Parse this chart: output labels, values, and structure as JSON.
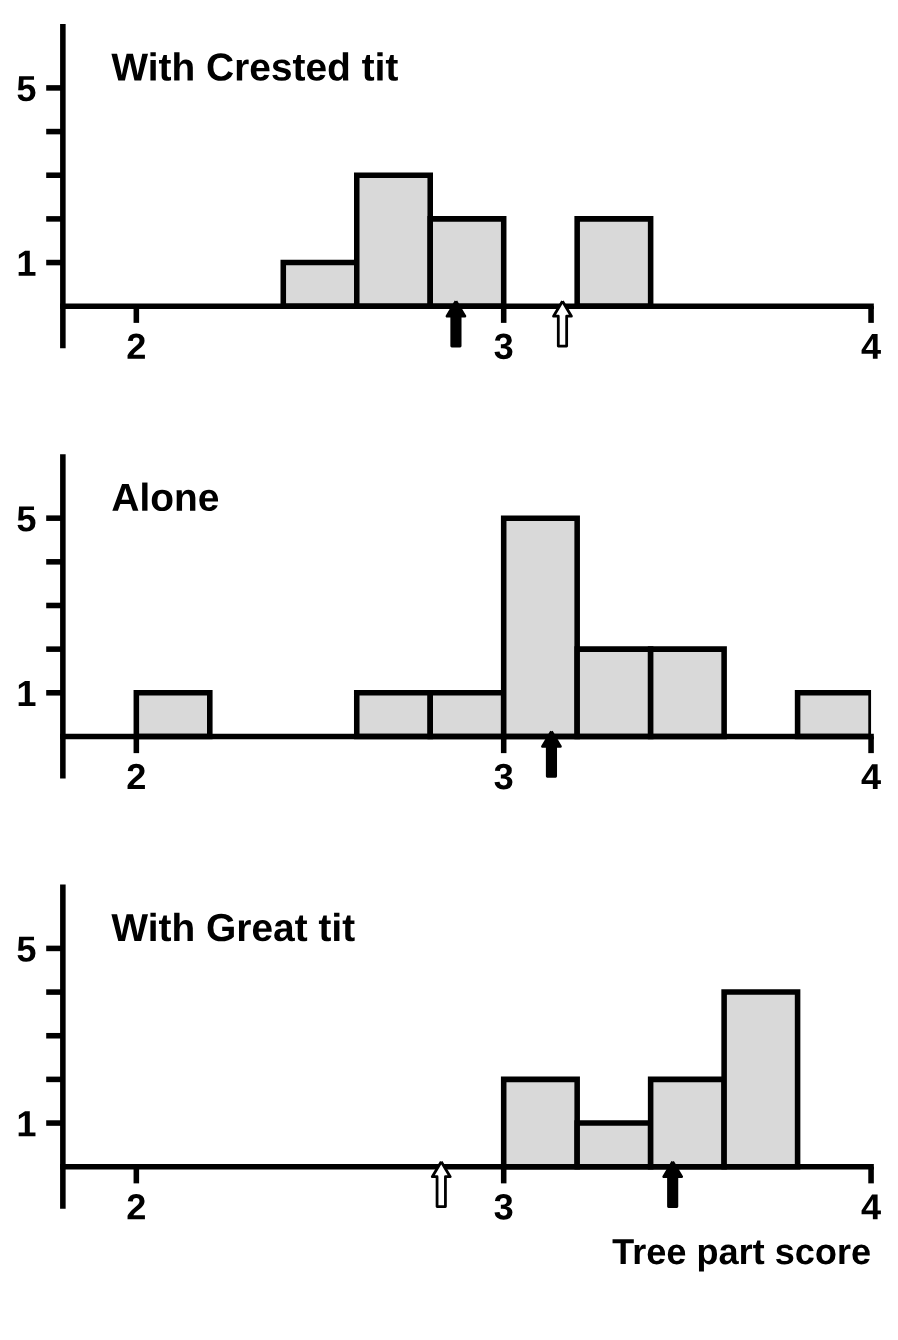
{
  "chart_data": [
    {
      "type": "histogram",
      "title": "With Crested tit",
      "bins": [
        2.4,
        2.6,
        2.8,
        3.0,
        3.2,
        3.4
      ],
      "values": [
        1,
        3,
        2,
        0,
        2
      ],
      "color": "#d9d9d9",
      "xlim": [
        1.8,
        4.0
      ],
      "xticks": [
        2,
        3,
        4
      ],
      "ylim": [
        -0.9,
        6.4
      ],
      "yticks": [
        1,
        {
          "value": 2,
          "label": null
        },
        {
          "value": 3,
          "label": null
        },
        {
          "value": 4,
          "label": null
        },
        5
      ],
      "grid": false,
      "series": [
        {
          "type": "scatter",
          "x": [
            2.87
          ],
          "values": [
            -0.4
          ],
          "color": "#000000"
        },
        {
          "type": "scatter",
          "x": [
            3.16
          ],
          "values": [
            -0.4
          ],
          "color": "#ffffff"
        }
      ]
    },
    {
      "type": "histogram",
      "title": "Alone",
      "bins": [
        2.0,
        2.2,
        2.4,
        2.6,
        2.8,
        3.0,
        3.2,
        3.4,
        3.6,
        3.8,
        4.0
      ],
      "values": [
        1,
        0,
        0,
        1,
        1,
        5,
        2,
        2,
        0,
        1
      ],
      "color": "#d9d9d9",
      "xlim": [
        1.8,
        4.0
      ],
      "xticks": [
        2,
        3,
        4
      ],
      "ylim": [
        -0.9,
        6.4
      ],
      "yticks": [
        1,
        {
          "value": 2,
          "label": null
        },
        {
          "value": 3,
          "label": null
        },
        {
          "value": 4,
          "label": null
        },
        5
      ],
      "grid": false,
      "series": [
        {
          "type": "scatter",
          "x": [
            3.13
          ],
          "values": [
            -0.4
          ],
          "color": "#000000"
        }
      ]
    },
    {
      "type": "histogram",
      "title": "With Great tit",
      "xlabel": "Tree part score",
      "bins": [
        3.0,
        3.2,
        3.4,
        3.6,
        3.8
      ],
      "values": [
        2,
        1,
        2,
        4
      ],
      "color": "#d9d9d9",
      "xlim": [
        1.8,
        4.0
      ],
      "xticks": [
        2,
        3,
        4
      ],
      "ylim": [
        -0.9,
        6.4
      ],
      "yticks": [
        1,
        {
          "value": 2,
          "label": null
        },
        {
          "value": 3,
          "label": null
        },
        {
          "value": 4,
          "label": null
        },
        5
      ],
      "grid": false,
      "series": [
        {
          "type": "scatter",
          "x": [
            2.83
          ],
          "values": [
            -0.4
          ],
          "color": "#ffffff"
        },
        {
          "type": "scatter",
          "x": [
            3.46
          ],
          "values": [
            -0.4
          ],
          "color": "#000000"
        }
      ]
    }
  ]
}
